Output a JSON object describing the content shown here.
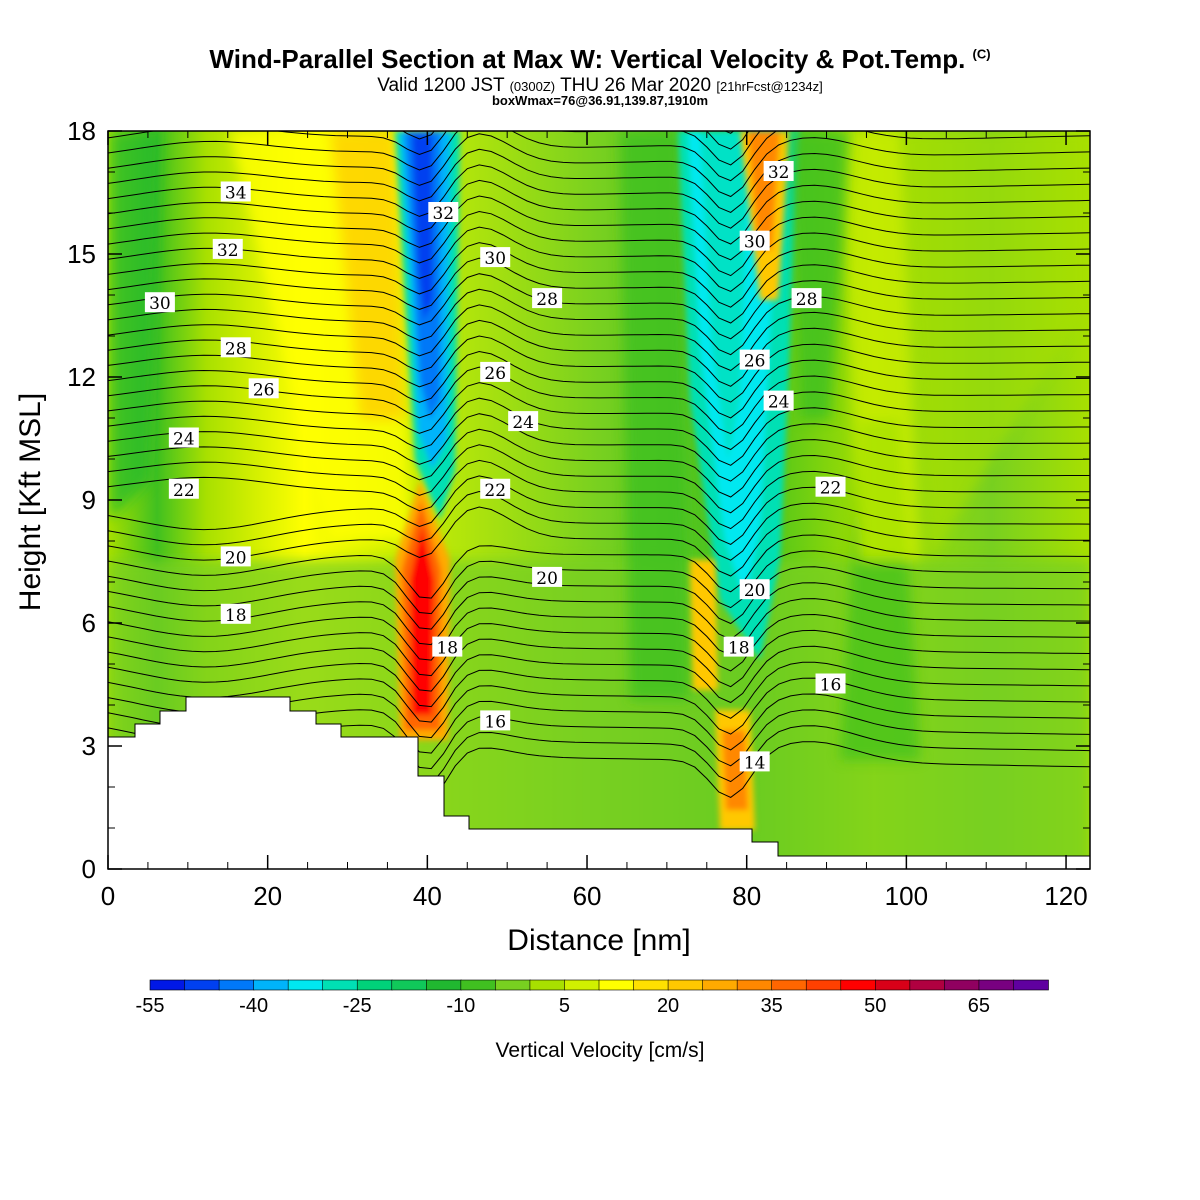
{
  "header": {
    "title": "Wind-Parallel Section at Max W: Vertical Velocity & Pot.Temp.",
    "title_mark": "(C)",
    "valid_prefix": "Valid 1200 JST",
    "valid_utc": "(0300Z)",
    "valid_date": "THU 26 Mar 2020",
    "forecast": "[21hrFcst@1234z]",
    "box_info": "boxWmax=76@36.91,139.87,1910m"
  },
  "chart_data": {
    "type": "heatmap",
    "xlabel": "Distance [nm]",
    "ylabel": "Height [Kft MSL]",
    "xlim": [
      0,
      123
    ],
    "ylim": [
      0,
      18
    ],
    "x_ticks": [
      "0",
      "20",
      "40",
      "60",
      "80",
      "100",
      "120"
    ],
    "y_ticks": [
      "0",
      "3",
      "6",
      "9",
      "12",
      "15",
      "18"
    ],
    "colorbar": {
      "title": "Vertical Velocity [cm/s]",
      "labels": [
        "-55",
        "-40",
        "-25",
        "-10",
        "5",
        "20",
        "35",
        "50",
        "65"
      ],
      "colors": [
        "#0018e6",
        "#0040f0",
        "#0078f8",
        "#00b4fa",
        "#00e8f0",
        "#00e0b4",
        "#00d27a",
        "#10c85a",
        "#20b830",
        "#40c020",
        "#78d020",
        "#a8e000",
        "#d0f000",
        "#ffff00",
        "#ffe000",
        "#ffc800",
        "#ffaa00",
        "#ff8800",
        "#ff6600",
        "#ff4000",
        "#ff0000",
        "#d80018",
        "#b00040",
        "#900060",
        "#780080",
        "#6000a0"
      ]
    },
    "theta_contour_labels": [
      {
        "text": "34",
        "x": 16,
        "y": 16.5
      },
      {
        "text": "32",
        "x": 15,
        "y": 15.1
      },
      {
        "text": "30",
        "x": 6.5,
        "y": 13.8
      },
      {
        "text": "28",
        "x": 16,
        "y": 12.7
      },
      {
        "text": "26",
        "x": 19.5,
        "y": 11.7
      },
      {
        "text": "24",
        "x": 9.5,
        "y": 10.5
      },
      {
        "text": "22",
        "x": 9.5,
        "y": 9.25
      },
      {
        "text": "20",
        "x": 16,
        "y": 7.6
      },
      {
        "text": "18",
        "x": 16,
        "y": 6.2
      },
      {
        "text": "32",
        "x": 42,
        "y": 16.0
      },
      {
        "text": "30",
        "x": 48.5,
        "y": 14.9
      },
      {
        "text": "28",
        "x": 55,
        "y": 13.9
      },
      {
        "text": "26",
        "x": 48.5,
        "y": 12.1
      },
      {
        "text": "24",
        "x": 52,
        "y": 10.9
      },
      {
        "text": "22",
        "x": 48.5,
        "y": 9.25
      },
      {
        "text": "20",
        "x": 55,
        "y": 7.1
      },
      {
        "text": "18",
        "x": 42.5,
        "y": 5.4
      },
      {
        "text": "16",
        "x": 48.5,
        "y": 3.6
      },
      {
        "text": "32",
        "x": 84,
        "y": 17.0
      },
      {
        "text": "30",
        "x": 81,
        "y": 15.3
      },
      {
        "text": "28",
        "x": 87.5,
        "y": 13.9
      },
      {
        "text": "26",
        "x": 81,
        "y": 12.4
      },
      {
        "text": "24",
        "x": 84,
        "y": 11.4
      },
      {
        "text": "22",
        "x": 90.5,
        "y": 9.3
      },
      {
        "text": "20",
        "x": 81,
        "y": 6.8
      },
      {
        "text": "18",
        "x": 79,
        "y": 5.4
      },
      {
        "text": "16",
        "x": 90.5,
        "y": 4.5
      },
      {
        "text": "14",
        "x": 81,
        "y": 2.6
      }
    ]
  }
}
